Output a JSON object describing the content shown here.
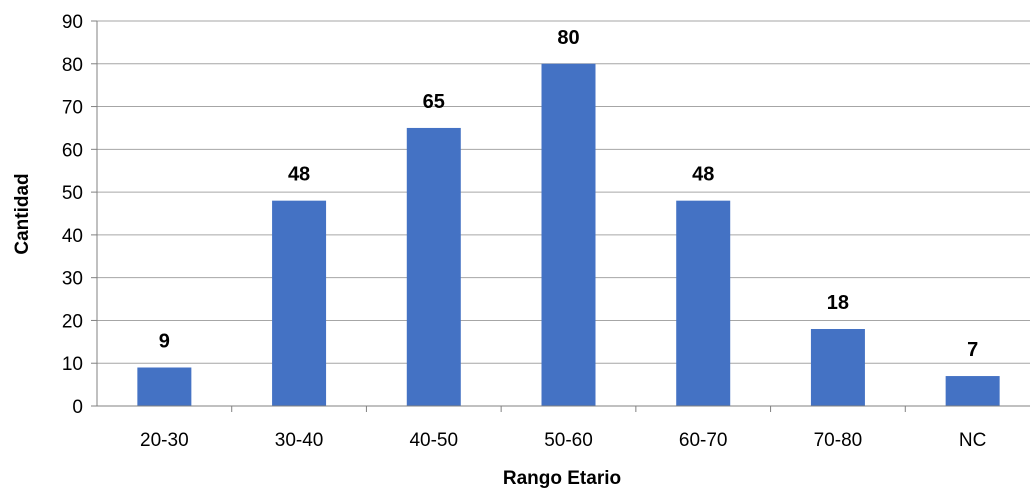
{
  "chart_data": {
    "type": "bar",
    "title": "",
    "xlabel": "Rango Etario",
    "ylabel": "Cantidad",
    "categories": [
      "20-30",
      "30-40",
      "40-50",
      "50-60",
      "60-70",
      "70-80",
      "NC"
    ],
    "values": [
      9,
      48,
      65,
      80,
      48,
      18,
      7
    ],
    "ylim": [
      0,
      90
    ],
    "yticks": [
      0,
      10,
      20,
      30,
      40,
      50,
      60,
      70,
      80,
      90
    ],
    "grid": true,
    "legend": "none",
    "bar_color": "#4472C4",
    "data_labels": true
  }
}
